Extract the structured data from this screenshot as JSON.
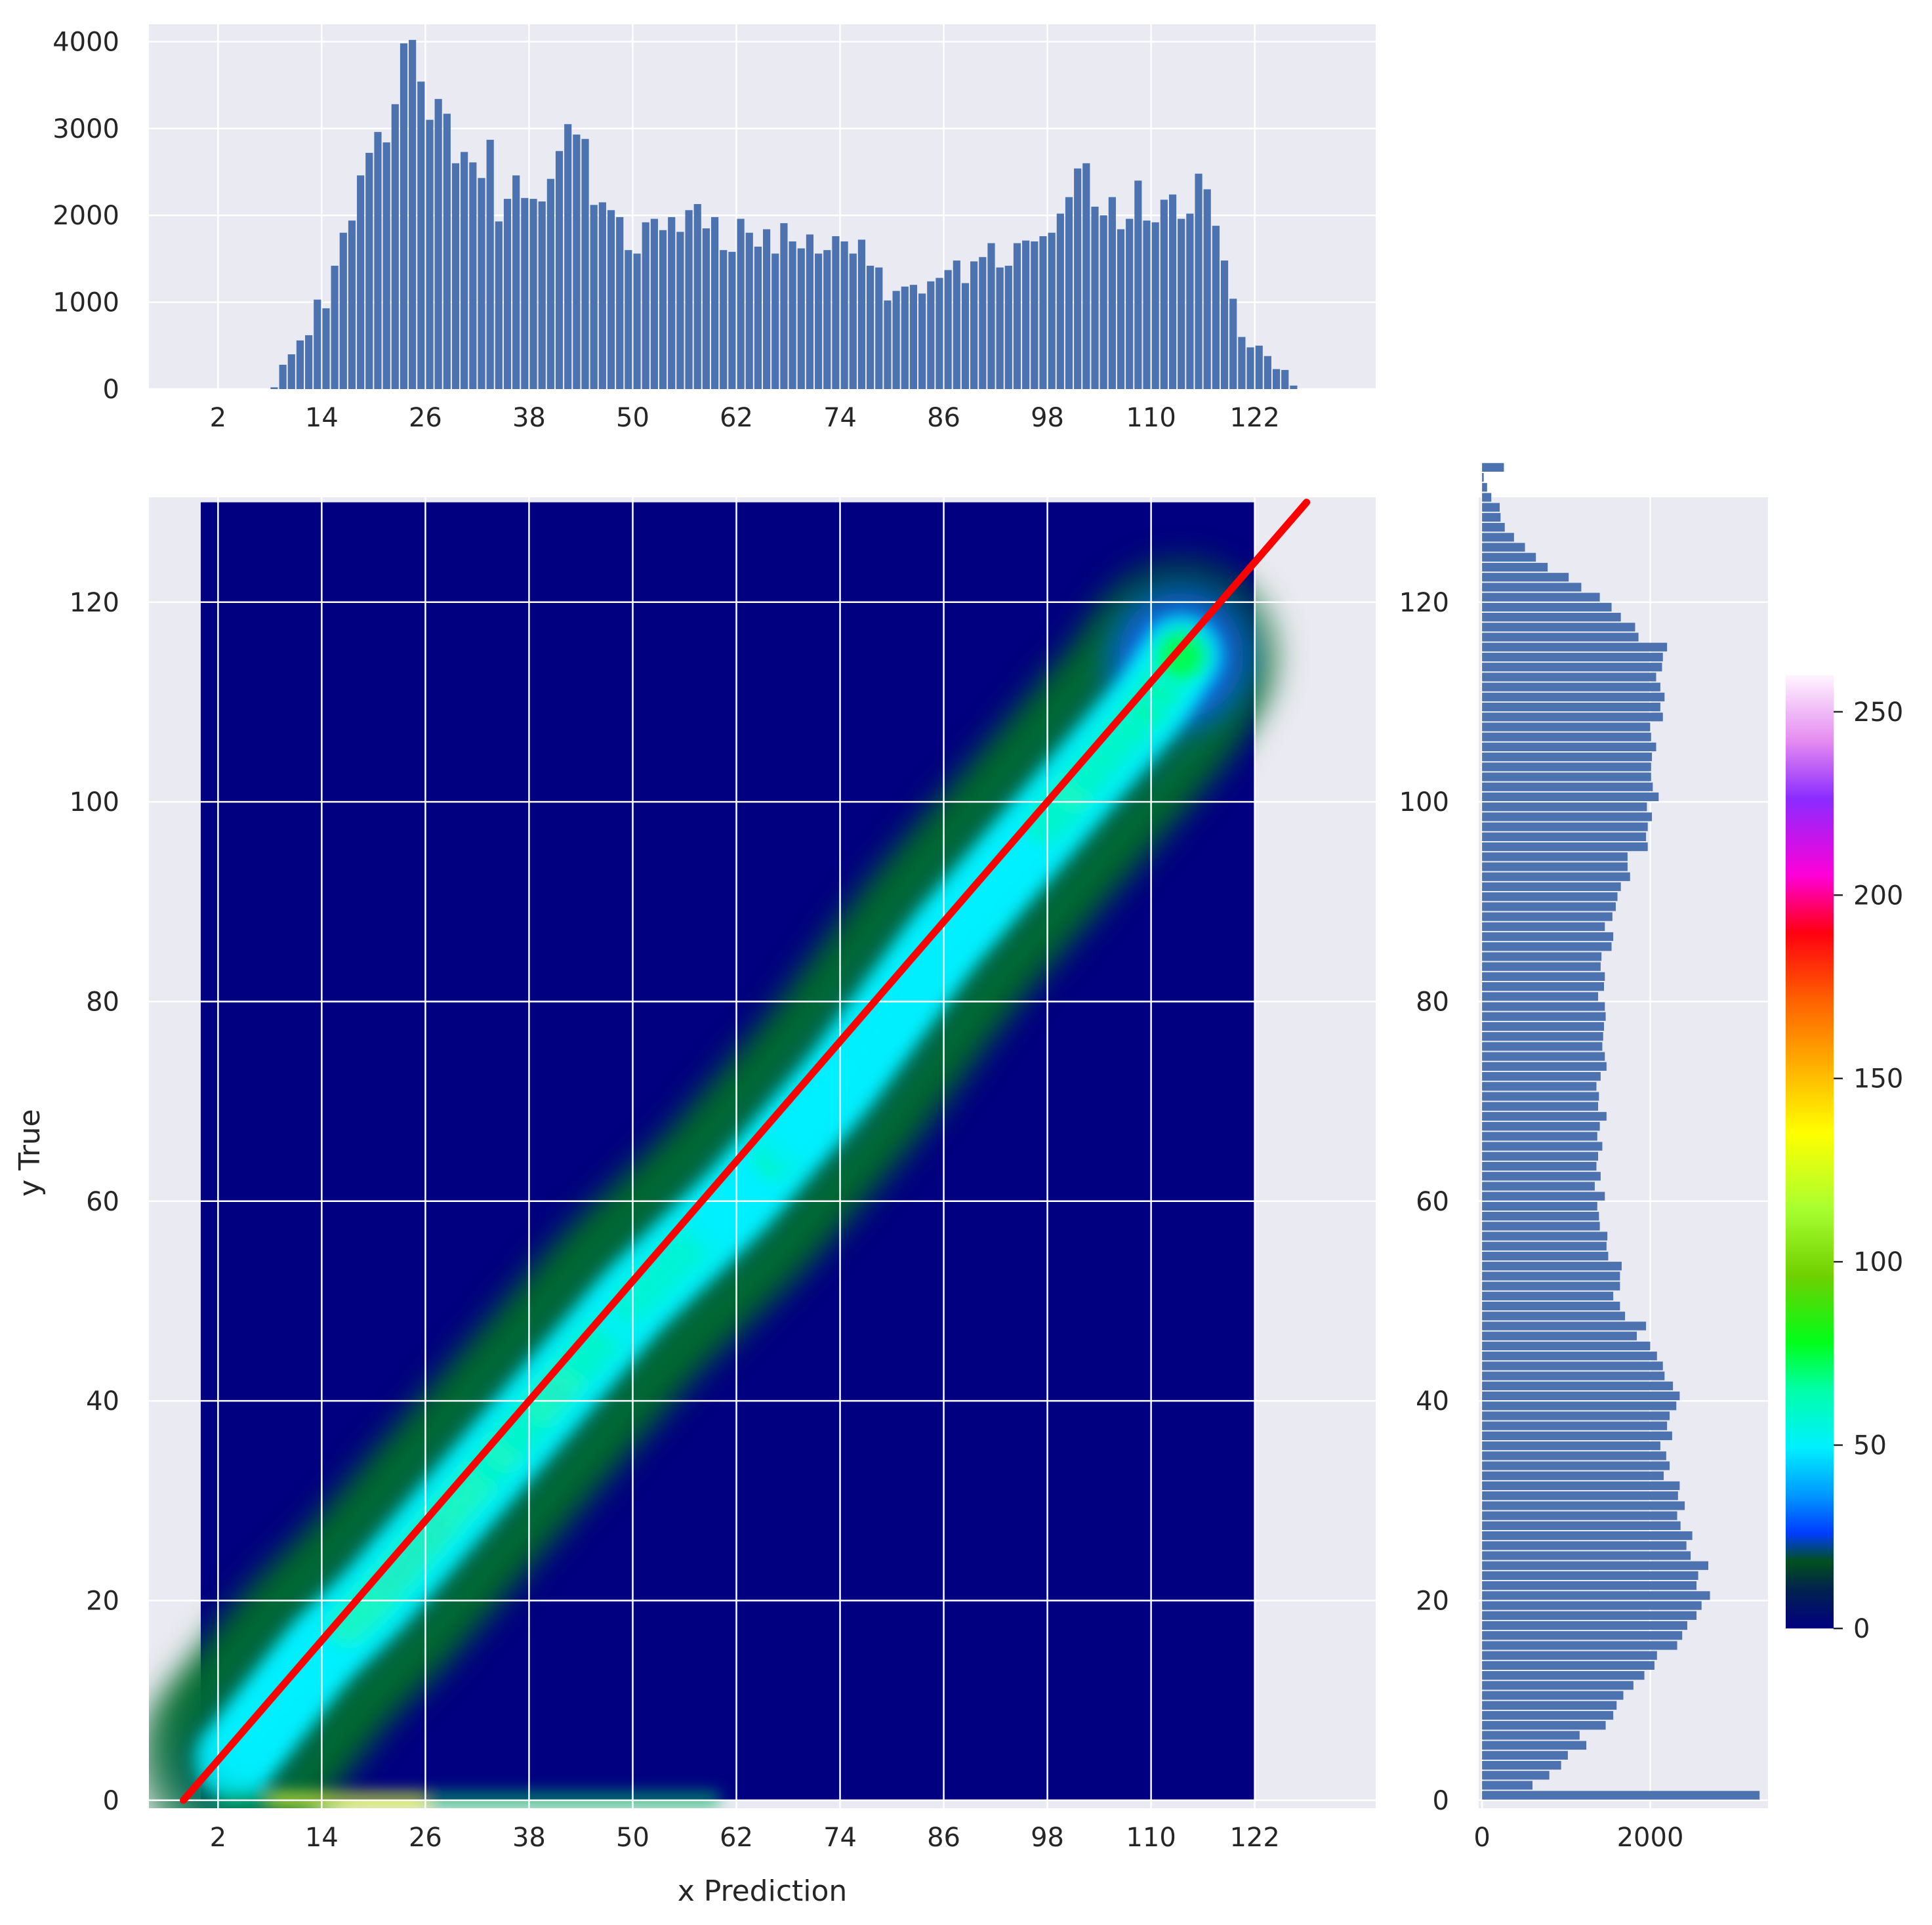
{
  "chart_data": [
    {
      "id": "top_histogram",
      "type": "bar",
      "bin_start": 0,
      "bin_width": 1,
      "x_ticks": [
        2,
        14,
        26,
        38,
        50,
        62,
        74,
        86,
        98,
        110,
        122
      ],
      "y_ticks": [
        0,
        1000,
        2000,
        3000,
        4000
      ],
      "xlim": [
        -6,
        136
      ],
      "ylim": [
        0,
        4200
      ],
      "values": [
        0,
        0,
        0,
        0,
        0,
        0,
        0,
        0,
        20,
        280,
        400,
        560,
        620,
        1030,
        930,
        1420,
        1800,
        1940,
        2460,
        2720,
        2960,
        2840,
        3280,
        3980,
        4020,
        3540,
        3100,
        3340,
        3170,
        2600,
        2730,
        2610,
        2430,
        2870,
        1930,
        2190,
        2460,
        2200,
        2190,
        2160,
        2420,
        2740,
        3050,
        2930,
        2880,
        2120,
        2150,
        2060,
        1980,
        1600,
        1560,
        1920,
        1960,
        1830,
        1980,
        1810,
        2060,
        2130,
        1850,
        1980,
        1600,
        1580,
        1960,
        1800,
        1640,
        1840,
        1560,
        1910,
        1700,
        1620,
        1780,
        1560,
        1600,
        1760,
        1700,
        1560,
        1720,
        1420,
        1400,
        1020,
        1130,
        1180,
        1200,
        1100,
        1240,
        1280,
        1370,
        1480,
        1220,
        1470,
        1520,
        1680,
        1400,
        1420,
        1680,
        1710,
        1700,
        1760,
        1800,
        2020,
        2210,
        2540,
        2600,
        2100,
        2000,
        2210,
        1840,
        1960,
        2400,
        1940,
        1920,
        2180,
        2240,
        1960,
        2020,
        2480,
        2300,
        1880,
        1480,
        1040,
        600,
        480,
        500,
        380,
        230,
        220,
        40,
        0
      ],
      "bar_color": "#4c72b0"
    },
    {
      "id": "hexbin_density",
      "type": "heatmap",
      "xlabel": "x Prediction",
      "ylabel": "y True",
      "x_ticks": [
        2,
        14,
        26,
        38,
        50,
        62,
        74,
        86,
        98,
        110,
        122
      ],
      "y_ticks": [
        0,
        20,
        40,
        60,
        80,
        100,
        120
      ],
      "xlim": [
        -6,
        136
      ],
      "ylim": [
        -0.8,
        130.5
      ],
      "data_xrange": [
        0,
        122
      ],
      "data_yrange": [
        0,
        130
      ],
      "density_ridge": [
        [
          2,
          2
        ],
        [
          14,
          15
        ],
        [
          20,
          20
        ],
        [
          38,
          38
        ],
        [
          50,
          50
        ],
        [
          62,
          60
        ],
        [
          74,
          72
        ],
        [
          86,
          86
        ],
        [
          98,
          98
        ],
        [
          104,
          104
        ],
        [
          110,
          110
        ],
        [
          116,
          118
        ]
      ],
      "colorscale": "gist_ncar",
      "diagonal_line": {
        "x": [
          -2,
          128
        ],
        "y": [
          0,
          130
        ],
        "color": "#ff0000"
      }
    },
    {
      "id": "right_histogram",
      "type": "bar",
      "orientation": "horizontal",
      "bin_start": 0,
      "bin_width": 1,
      "x_ticks": [
        0,
        2000
      ],
      "y_ticks": [
        0,
        20,
        40,
        60,
        80,
        100,
        120
      ],
      "xlim": [
        -40,
        3400
      ],
      "ylim": [
        -0.8,
        130.5
      ],
      "values": [
        3300,
        600,
        800,
        940,
        1020,
        1240,
        1160,
        1470,
        1560,
        1600,
        1680,
        1800,
        1930,
        2050,
        2080,
        2320,
        2380,
        2440,
        2550,
        2610,
        2710,
        2550,
        2570,
        2690,
        2480,
        2430,
        2500,
        2360,
        2320,
        2410,
        2330,
        2350,
        2160,
        2230,
        2190,
        2120,
        2260,
        2200,
        2230,
        2310,
        2350,
        2270,
        2170,
        2150,
        2080,
        2000,
        1840,
        1950,
        1700,
        1640,
        1560,
        1640,
        1640,
        1660,
        1500,
        1480,
        1490,
        1400,
        1390,
        1370,
        1460,
        1340,
        1410,
        1360,
        1380,
        1430,
        1370,
        1400,
        1480,
        1380,
        1390,
        1360,
        1410,
        1480,
        1460,
        1430,
        1440,
        1450,
        1470,
        1460,
        1380,
        1450,
        1460,
        1410,
        1420,
        1540,
        1560,
        1460,
        1550,
        1590,
        1610,
        1650,
        1760,
        1730,
        1730,
        1970,
        1950,
        1970,
        2020,
        1960,
        2100,
        2030,
        2010,
        2010,
        2020,
        2070,
        2010,
        2000,
        2150,
        2120,
        2170,
        2120,
        2070,
        2140,
        2150,
        2200,
        1860,
        1820,
        1650,
        1540,
        1400,
        1180,
        1030,
        780,
        640,
        510,
        380,
        270,
        220,
        210,
        110,
        60,
        20,
        260
      ],
      "bar_color": "#4c72b0"
    },
    {
      "id": "colorbar",
      "type": "colorbar",
      "range": [
        0,
        260
      ],
      "ticks": [
        0,
        50,
        100,
        150,
        200,
        250
      ],
      "colorscale": "gist_ncar"
    }
  ]
}
